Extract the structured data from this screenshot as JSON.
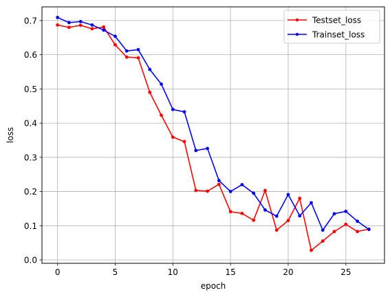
{
  "chart_data": {
    "type": "line",
    "xlabel": "epoch",
    "ylabel": "loss",
    "xlim": [
      -1.35,
      28.35
    ],
    "ylim": [
      -0.01,
      0.74
    ],
    "xticks": [
      0,
      5,
      10,
      15,
      20,
      25
    ],
    "yticks": [
      0.0,
      0.1,
      0.2,
      0.3,
      0.4,
      0.5,
      0.6,
      0.7
    ],
    "grid": true,
    "legend_position": "top-right",
    "x": [
      0,
      1,
      2,
      3,
      4,
      5,
      6,
      7,
      8,
      9,
      10,
      11,
      12,
      13,
      14,
      15,
      16,
      17,
      18,
      19,
      20,
      21,
      22,
      23,
      24,
      25,
      26,
      27
    ],
    "series": [
      {
        "name": "Testset_loss",
        "color": "#ff0000",
        "values": [
          0.687,
          0.68,
          0.686,
          0.676,
          0.681,
          0.629,
          0.593,
          0.591,
          0.49,
          0.423,
          0.359,
          0.346,
          0.203,
          0.201,
          0.221,
          0.141,
          0.136,
          0.116,
          0.203,
          0.087,
          0.115,
          0.18,
          0.028,
          0.055,
          0.083,
          0.104,
          0.083,
          0.09
        ]
      },
      {
        "name": "Trainset_loss",
        "color": "#0000ff",
        "values": [
          0.709,
          0.694,
          0.697,
          0.687,
          0.672,
          0.654,
          0.611,
          0.615,
          0.557,
          0.514,
          0.44,
          0.433,
          0.32,
          0.326,
          0.232,
          0.2,
          0.22,
          0.195,
          0.146,
          0.128,
          0.191,
          0.129,
          0.167,
          0.087,
          0.135,
          0.142,
          0.113,
          0.089
        ]
      }
    ]
  }
}
